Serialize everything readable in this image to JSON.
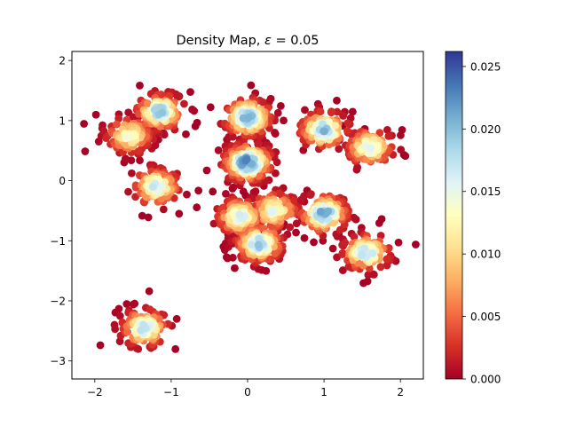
{
  "chart_data": {
    "type": "scatter",
    "title_prefix": "Density Map, ",
    "title_symbol": "ε",
    "title_suffix": " = 0.05",
    "xlabel": "",
    "ylabel": "",
    "xlim": [
      -2.3,
      2.3
    ],
    "ylim": [
      -3.3,
      2.15
    ],
    "xticks": [
      -2,
      -1,
      0,
      1,
      2
    ],
    "yticks": [
      -3,
      -2,
      -1,
      0,
      1,
      2
    ],
    "grid": false,
    "colormap": "RdYlBu",
    "colorbar": {
      "min": 0.0,
      "max": 0.0262,
      "ticks": [
        "0.000",
        "0.005",
        "0.010",
        "0.015",
        "0.020",
        "0.025"
      ],
      "tick_values": [
        0.0,
        0.005,
        0.01,
        0.015,
        0.02,
        0.025
      ],
      "stops": [
        "#a50026",
        "#d73027",
        "#f46d43",
        "#fdae61",
        "#fee090",
        "#ffffbf",
        "#e0f3f8",
        "#abd9e9",
        "#74add1",
        "#4575b4",
        "#313695"
      ]
    },
    "clusters": [
      {
        "center": [
          -1.15,
          1.15
        ],
        "count": 130,
        "peak_density": 0.019
      },
      {
        "center": [
          -1.55,
          0.75
        ],
        "count": 130,
        "peak_density": 0.014
      },
      {
        "center": [
          -1.2,
          -0.1
        ],
        "count": 110,
        "peak_density": 0.017
      },
      {
        "center": [
          0.0,
          1.05
        ],
        "count": 220,
        "peak_density": 0.02
      },
      {
        "center": [
          0.0,
          0.3
        ],
        "count": 230,
        "peak_density": 0.023
      },
      {
        "center": [
          -0.1,
          -0.6
        ],
        "count": 150,
        "peak_density": 0.016
      },
      {
        "center": [
          0.15,
          -1.05
        ],
        "count": 170,
        "peak_density": 0.019
      },
      {
        "center": [
          0.35,
          -0.5
        ],
        "count": 110,
        "peak_density": 0.015
      },
      {
        "center": [
          1.0,
          0.85
        ],
        "count": 130,
        "peak_density": 0.02
      },
      {
        "center": [
          1.6,
          0.55
        ],
        "count": 130,
        "peak_density": 0.016
      },
      {
        "center": [
          1.0,
          -0.55
        ],
        "count": 130,
        "peak_density": 0.021
      },
      {
        "center": [
          1.55,
          -1.2
        ],
        "count": 130,
        "peak_density": 0.018
      },
      {
        "center": [
          -1.35,
          -2.45
        ],
        "count": 130,
        "peak_density": 0.018
      }
    ]
  }
}
